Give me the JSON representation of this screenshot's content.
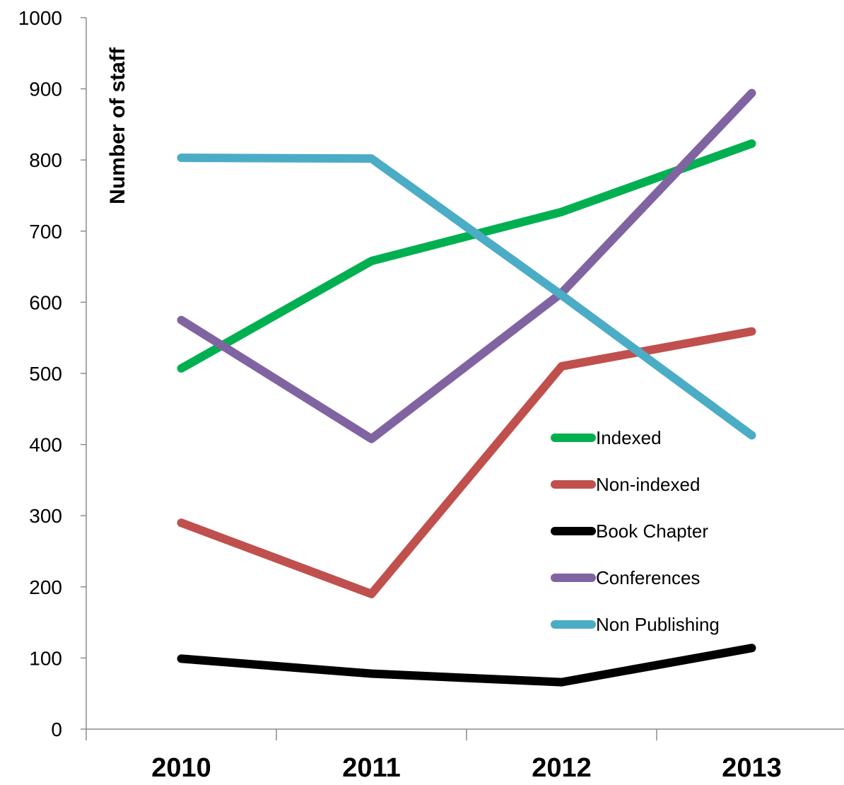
{
  "chart_data": {
    "type": "line",
    "title": "",
    "xlabel": "",
    "ylabel": "Number of staff",
    "categories": [
      "2010",
      "2011",
      "2012",
      "2013"
    ],
    "ylim": [
      0,
      1000
    ],
    "yticks": [
      0,
      100,
      200,
      300,
      400,
      500,
      600,
      700,
      800,
      900,
      1000
    ],
    "grid": false,
    "legend_position": "inside-right",
    "series": [
      {
        "name": "Indexed",
        "color": "#00b050",
        "values": [
          507,
          658,
          727,
          823
        ]
      },
      {
        "name": "Non-indexed",
        "color": "#c0504d",
        "values": [
          290,
          190,
          510,
          559
        ]
      },
      {
        "name": "Book Chapter",
        "color": "#000000",
        "values": [
          99,
          78,
          66,
          114
        ]
      },
      {
        "name": "Conferences",
        "color": "#8064a2",
        "values": [
          575,
          408,
          613,
          894
        ]
      },
      {
        "name": "Non Publishing",
        "color": "#4bacc6",
        "values": [
          803,
          802,
          610,
          413
        ]
      }
    ]
  }
}
